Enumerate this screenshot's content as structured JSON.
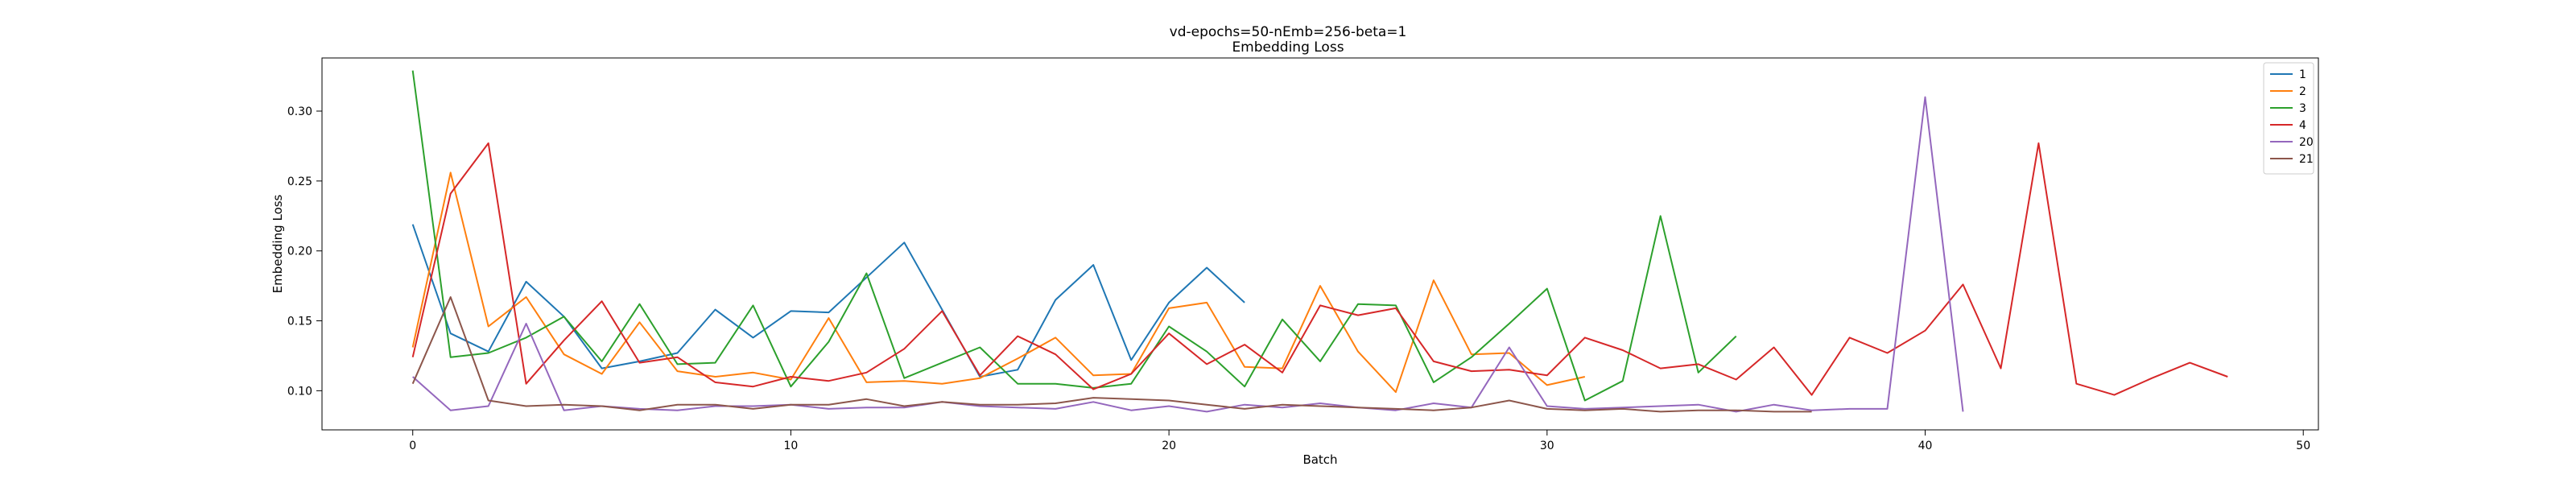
{
  "chart_data": {
    "type": "line",
    "title": "vd-epochs=50-nEmb=256-beta=1",
    "subtitle": "Embedding Loss",
    "xlabel": "Batch",
    "ylabel": "Embedding Loss",
    "xlim": [
      -2.4,
      50.4
    ],
    "ylim": [
      0.072,
      0.338
    ],
    "xticks": [
      0,
      10,
      20,
      30,
      40,
      50
    ],
    "yticks": [
      0.1,
      0.15,
      0.2,
      0.25,
      0.3
    ],
    "xtick_labels": [
      "0",
      "10",
      "20",
      "30",
      "40",
      "50"
    ],
    "ytick_labels": [
      "0.10",
      "0.15",
      "0.20",
      "0.25",
      "0.30"
    ],
    "grid": false,
    "legend_position": "top-right",
    "series": [
      {
        "name": "1",
        "color": "#1f77b4",
        "values": [
          0.219,
          0.141,
          0.128,
          0.178,
          0.153,
          0.116,
          0.121,
          0.127,
          0.158,
          0.138,
          0.157,
          0.156,
          0.181,
          0.206,
          0.158,
          0.11,
          0.115,
          0.165,
          0.19,
          0.122,
          0.163,
          0.188,
          0.163
        ]
      },
      {
        "name": "2",
        "color": "#ff7f0e",
        "values": [
          0.131,
          0.256,
          0.146,
          0.167,
          0.126,
          0.112,
          0.149,
          0.114,
          0.11,
          0.113,
          0.108,
          0.152,
          0.106,
          0.107,
          0.105,
          0.109,
          0.123,
          0.138,
          0.111,
          0.112,
          0.159,
          0.163,
          0.117,
          0.116,
          0.175,
          0.128,
          0.099,
          0.179,
          0.126,
          0.127,
          0.104,
          0.11
        ]
      },
      {
        "name": "3",
        "color": "#2ca02c",
        "values": [
          0.329,
          0.124,
          0.127,
          0.138,
          0.153,
          0.121,
          0.162,
          0.119,
          0.12,
          0.161,
          0.103,
          0.135,
          0.184,
          0.109,
          0.12,
          0.131,
          0.105,
          0.105,
          0.102,
          0.105,
          0.146,
          0.128,
          0.103,
          0.151,
          0.121,
          0.162,
          0.161,
          0.106,
          0.124,
          0.148,
          0.173,
          0.093,
          0.107,
          0.225,
          0.113,
          0.139
        ]
      },
      {
        "name": "4",
        "color": "#d62728",
        "values": [
          0.124,
          0.241,
          0.277,
          0.105,
          0.136,
          0.164,
          0.12,
          0.124,
          0.106,
          0.103,
          0.11,
          0.107,
          0.113,
          0.13,
          0.157,
          0.111,
          0.139,
          0.126,
          0.101,
          0.112,
          0.141,
          0.119,
          0.133,
          0.113,
          0.161,
          0.154,
          0.159,
          0.121,
          0.114,
          0.115,
          0.111,
          0.138,
          0.129,
          0.116,
          0.119,
          0.108,
          0.131,
          0.097,
          0.138,
          0.127,
          0.143,
          0.176,
          0.116,
          0.277,
          0.105,
          0.097,
          0.109,
          0.12,
          0.11
        ]
      },
      {
        "name": "20",
        "color": "#9467bd",
        "values": [
          0.11,
          0.086,
          0.089,
          0.148,
          0.086,
          0.089,
          0.087,
          0.086,
          0.089,
          0.089,
          0.09,
          0.087,
          0.088,
          0.088,
          0.092,
          0.089,
          0.088,
          0.087,
          0.092,
          0.086,
          0.089,
          0.085,
          0.09,
          0.088,
          0.091,
          0.088,
          0.086,
          0.091,
          0.088,
          0.131,
          0.089,
          0.087,
          0.088,
          0.089,
          0.09,
          0.085,
          0.09,
          0.086,
          0.087,
          0.087,
          0.31,
          0.085
        ]
      },
      {
        "name": "21",
        "color": "#8c564b",
        "values": [
          0.105,
          0.167,
          0.093,
          0.089,
          0.09,
          0.089,
          0.086,
          0.09,
          0.09,
          0.087,
          0.09,
          0.09,
          0.094,
          0.089,
          0.092,
          0.09,
          0.09,
          0.091,
          0.095,
          0.094,
          0.093,
          0.09,
          0.087,
          0.09,
          0.089,
          0.088,
          0.087,
          0.086,
          0.088,
          0.093,
          0.087,
          0.086,
          0.087,
          0.085,
          0.086,
          0.086,
          0.085,
          0.085
        ]
      }
    ]
  }
}
